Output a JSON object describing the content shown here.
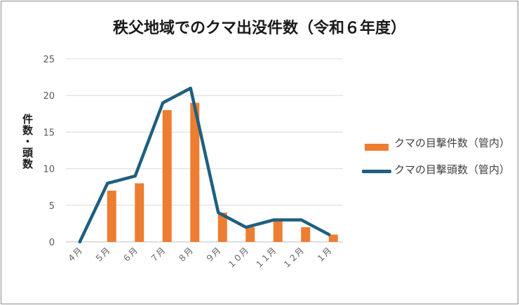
{
  "chart_data": {
    "type": "bar+line",
    "title": "秩父地域でのクマ出没件数（令和６年度）",
    "ylabel": "件数・頭数",
    "xlabel": "",
    "categories": [
      "４月",
      "５月",
      "６月",
      "７月",
      "８月",
      "９月",
      "１０月",
      "１１月",
      "１２月",
      "１月"
    ],
    "ylim": [
      0,
      25
    ],
    "yticks": [
      0,
      5,
      10,
      15,
      20,
      25
    ],
    "grid": true,
    "legend_position": "right",
    "series": [
      {
        "name": "クマの目撃件数（管内）",
        "type": "bar",
        "color": "#ed7d31",
        "values": [
          0,
          7,
          8,
          18,
          19,
          4,
          2,
          3,
          2,
          1
        ]
      },
      {
        "name": "クマの目撃頭数（管内）",
        "type": "line",
        "color": "#1f5f7f",
        "values": [
          0,
          8,
          9,
          19,
          21,
          4,
          2,
          3,
          3,
          1
        ]
      }
    ]
  }
}
